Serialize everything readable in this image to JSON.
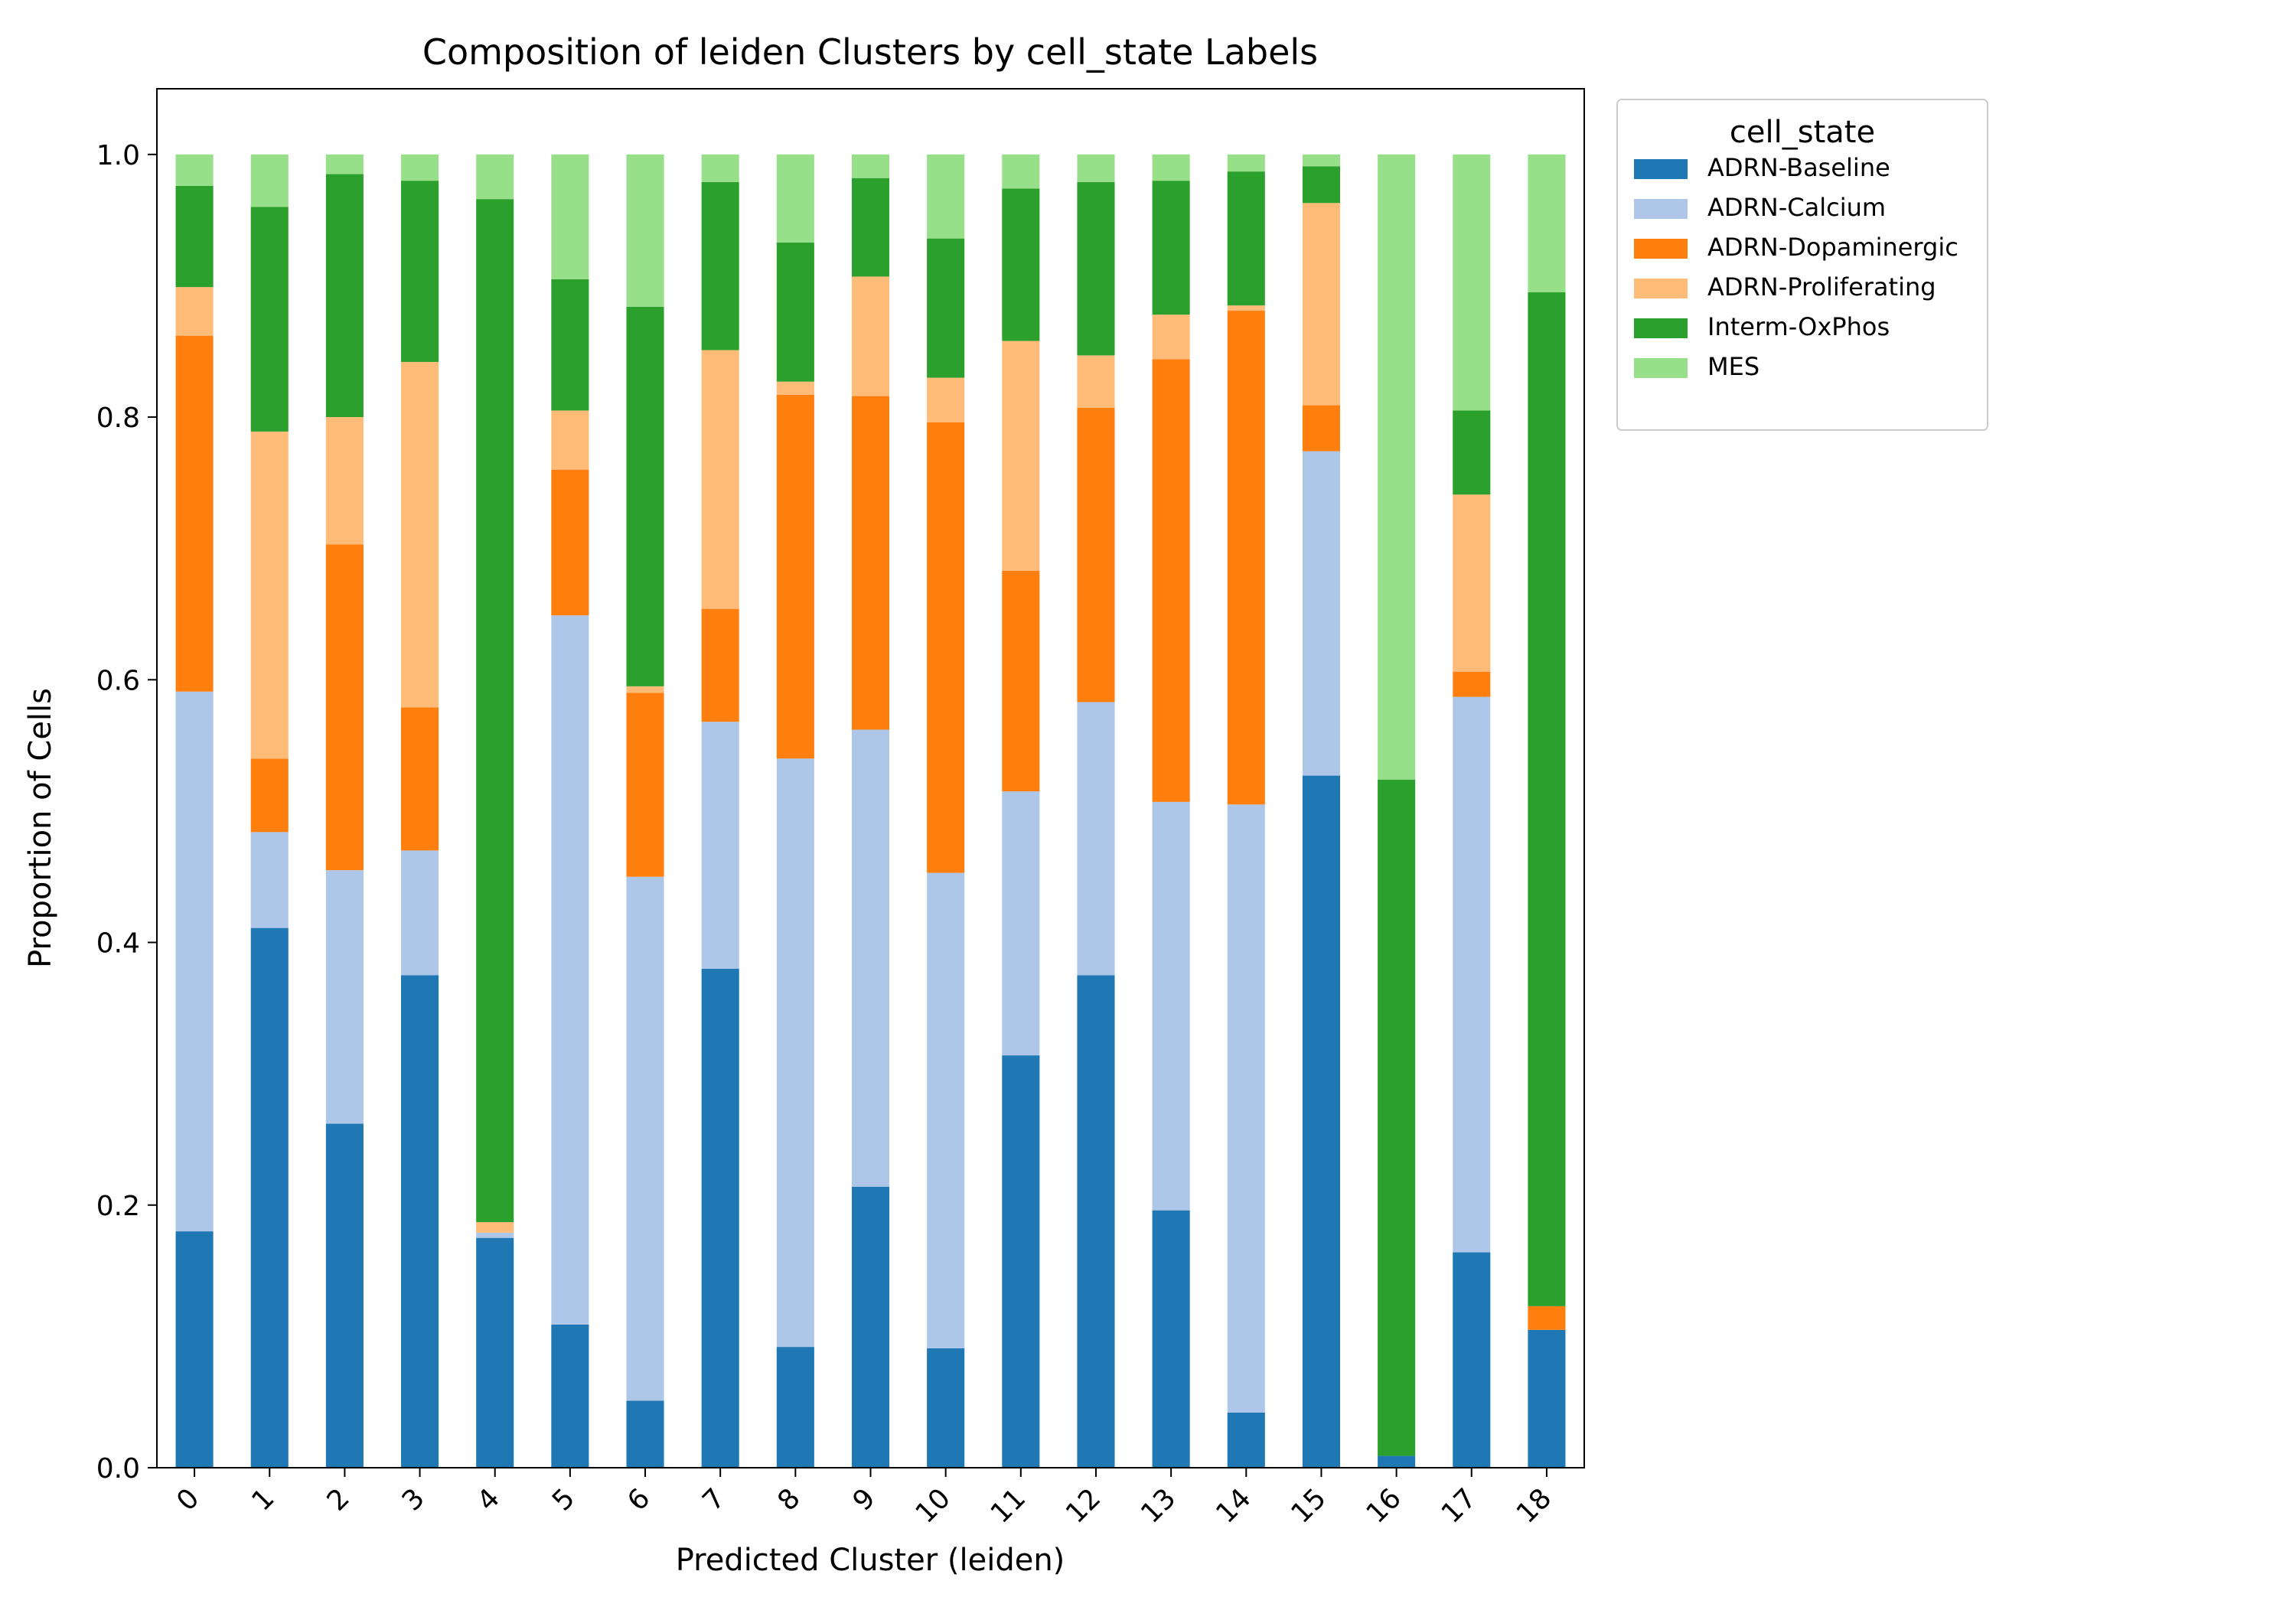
{
  "chart_data": {
    "type": "bar",
    "stacked": true,
    "title": "Composition of leiden Clusters by cell_state Labels",
    "xlabel": "Predicted Cluster (leiden)",
    "ylabel": "Proportion of Cells",
    "ylim": [
      0,
      1.05
    ],
    "yticks": [
      "0.0",
      "0.2",
      "0.4",
      "0.6",
      "0.8",
      "1.0"
    ],
    "grid": false,
    "legend": {
      "title": "cell_state",
      "placement": "outside-top-right"
    },
    "categories": [
      "0",
      "1",
      "2",
      "3",
      "4",
      "5",
      "6",
      "7",
      "8",
      "9",
      "10",
      "11",
      "12",
      "13",
      "14",
      "15",
      "16",
      "17",
      "18"
    ],
    "series": [
      {
        "name": "ADRN-Baseline",
        "color": "#1f77b4",
        "values": [
          0.18,
          0.411,
          0.262,
          0.375,
          0.175,
          0.109,
          0.051,
          0.38,
          0.092,
          0.214,
          0.091,
          0.314,
          0.375,
          0.196,
          0.042,
          0.527,
          0.009,
          0.164,
          0.105
        ]
      },
      {
        "name": "ADRN-Calcium",
        "color": "#aec7e8",
        "values": [
          0.411,
          0.073,
          0.193,
          0.095,
          0.004,
          0.54,
          0.399,
          0.188,
          0.448,
          0.348,
          0.362,
          0.201,
          0.208,
          0.311,
          0.463,
          0.247,
          0.0,
          0.423,
          0.0
        ]
      },
      {
        "name": "ADRN-Dopaminergic",
        "color": "#ff7f0e",
        "values": [
          0.271,
          0.056,
          0.248,
          0.109,
          0.0,
          0.111,
          0.14,
          0.086,
          0.277,
          0.254,
          0.343,
          0.168,
          0.224,
          0.337,
          0.376,
          0.035,
          0.0,
          0.019,
          0.018
        ]
      },
      {
        "name": "ADRN-Proliferating",
        "color": "#ffbb78",
        "values": [
          0.037,
          0.249,
          0.097,
          0.263,
          0.008,
          0.045,
          0.005,
          0.197,
          0.01,
          0.091,
          0.034,
          0.175,
          0.04,
          0.034,
          0.004,
          0.154,
          0.0,
          0.135,
          0.0
        ]
      },
      {
        "name": "Interm-OxPhos",
        "color": "#2ca02c",
        "values": [
          0.077,
          0.171,
          0.185,
          0.138,
          0.779,
          0.1,
          0.289,
          0.128,
          0.106,
          0.075,
          0.106,
          0.116,
          0.132,
          0.102,
          0.102,
          0.028,
          0.515,
          0.064,
          0.772
        ]
      },
      {
        "name": "MES",
        "color": "#98df8a",
        "values": [
          0.024,
          0.04,
          0.015,
          0.02,
          0.034,
          0.095,
          0.116,
          0.021,
          0.067,
          0.018,
          0.064,
          0.026,
          0.021,
          0.02,
          0.013,
          0.009,
          0.476,
          0.195,
          0.105
        ]
      }
    ]
  }
}
